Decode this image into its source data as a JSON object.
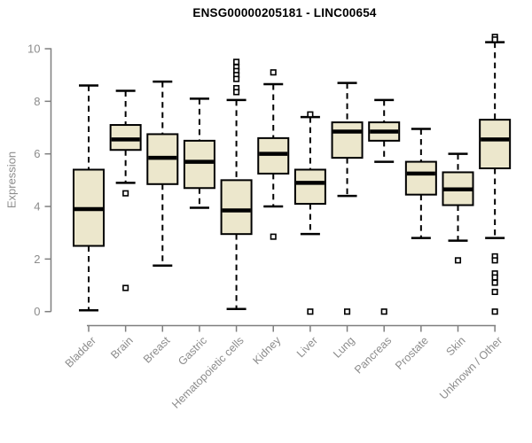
{
  "colors": {
    "background": "#ffffff",
    "box_fill": "#ECE7CC",
    "box_border": "#000000",
    "median": "#000000",
    "whisker": "#000000",
    "outlier_fill": "#ffffff",
    "axis_line": "#7f7f7f",
    "axis_text": "#8c8c8c",
    "title_text": "#000000"
  },
  "chart_data": {
    "type": "boxplot",
    "title": "ENSG00000205181 - LINC00654",
    "xlabel": "",
    "ylabel": "Expression",
    "ylim": [
      0,
      10.5
    ],
    "yticks": [
      0,
      2,
      4,
      6,
      8,
      10
    ],
    "grid": "off",
    "legend": "none",
    "categories": [
      "Bladder",
      "Brain",
      "Breast",
      "Gastric",
      "Hematopoietic cells",
      "Kidney",
      "Liver",
      "Lung",
      "Pancreas",
      "Prostate",
      "Skin",
      "Unknown / Other"
    ],
    "series": [
      {
        "category": "Bladder",
        "low": 0.05,
        "q1": 2.5,
        "median": 3.9,
        "q3": 5.4,
        "high": 8.6,
        "outliers": []
      },
      {
        "category": "Brain",
        "low": 4.9,
        "q1": 6.15,
        "median": 6.55,
        "q3": 7.1,
        "high": 8.4,
        "outliers": [
          4.5,
          0.9
        ]
      },
      {
        "category": "Breast",
        "low": 1.75,
        "q1": 4.85,
        "median": 5.85,
        "q3": 6.75,
        "high": 8.75,
        "outliers": []
      },
      {
        "category": "Gastric",
        "low": 3.95,
        "q1": 4.7,
        "median": 5.7,
        "q3": 6.5,
        "high": 8.1,
        "outliers": []
      },
      {
        "category": "Hematopoietic cells",
        "low": 0.1,
        "q1": 2.95,
        "median": 3.85,
        "q3": 5.0,
        "high": 8.05,
        "outliers": [
          9.5,
          9.3,
          9.15,
          9.0,
          8.85,
          8.5,
          8.35
        ]
      },
      {
        "category": "Kidney",
        "low": 4.0,
        "q1": 5.25,
        "median": 6.0,
        "q3": 6.6,
        "high": 8.65,
        "outliers": [
          9.1,
          2.85
        ]
      },
      {
        "category": "Liver",
        "low": 2.95,
        "q1": 4.1,
        "median": 4.9,
        "q3": 5.4,
        "high": 7.4,
        "outliers": [
          7.5,
          0.0
        ]
      },
      {
        "category": "Lung",
        "low": 4.4,
        "q1": 5.85,
        "median": 6.85,
        "q3": 7.2,
        "high": 8.7,
        "outliers": [
          0.0
        ]
      },
      {
        "category": "Pancreas",
        "low": 5.7,
        "q1": 6.5,
        "median": 6.85,
        "q3": 7.2,
        "high": 8.05,
        "outliers": [
          0.0
        ]
      },
      {
        "category": "Prostate",
        "low": 2.8,
        "q1": 4.45,
        "median": 5.25,
        "q3": 5.7,
        "high": 6.95,
        "outliers": []
      },
      {
        "category": "Skin",
        "low": 2.7,
        "q1": 4.05,
        "median": 4.65,
        "q3": 5.3,
        "high": 6.0,
        "outliers": [
          1.95
        ]
      },
      {
        "category": "Unknown / Other",
        "low": 2.8,
        "q1": 5.45,
        "median": 6.55,
        "q3": 7.3,
        "high": 10.25,
        "outliers": [
          10.45,
          10.35,
          2.1,
          1.95,
          1.45,
          1.3,
          1.1,
          0.75,
          0.0
        ]
      }
    ]
  }
}
